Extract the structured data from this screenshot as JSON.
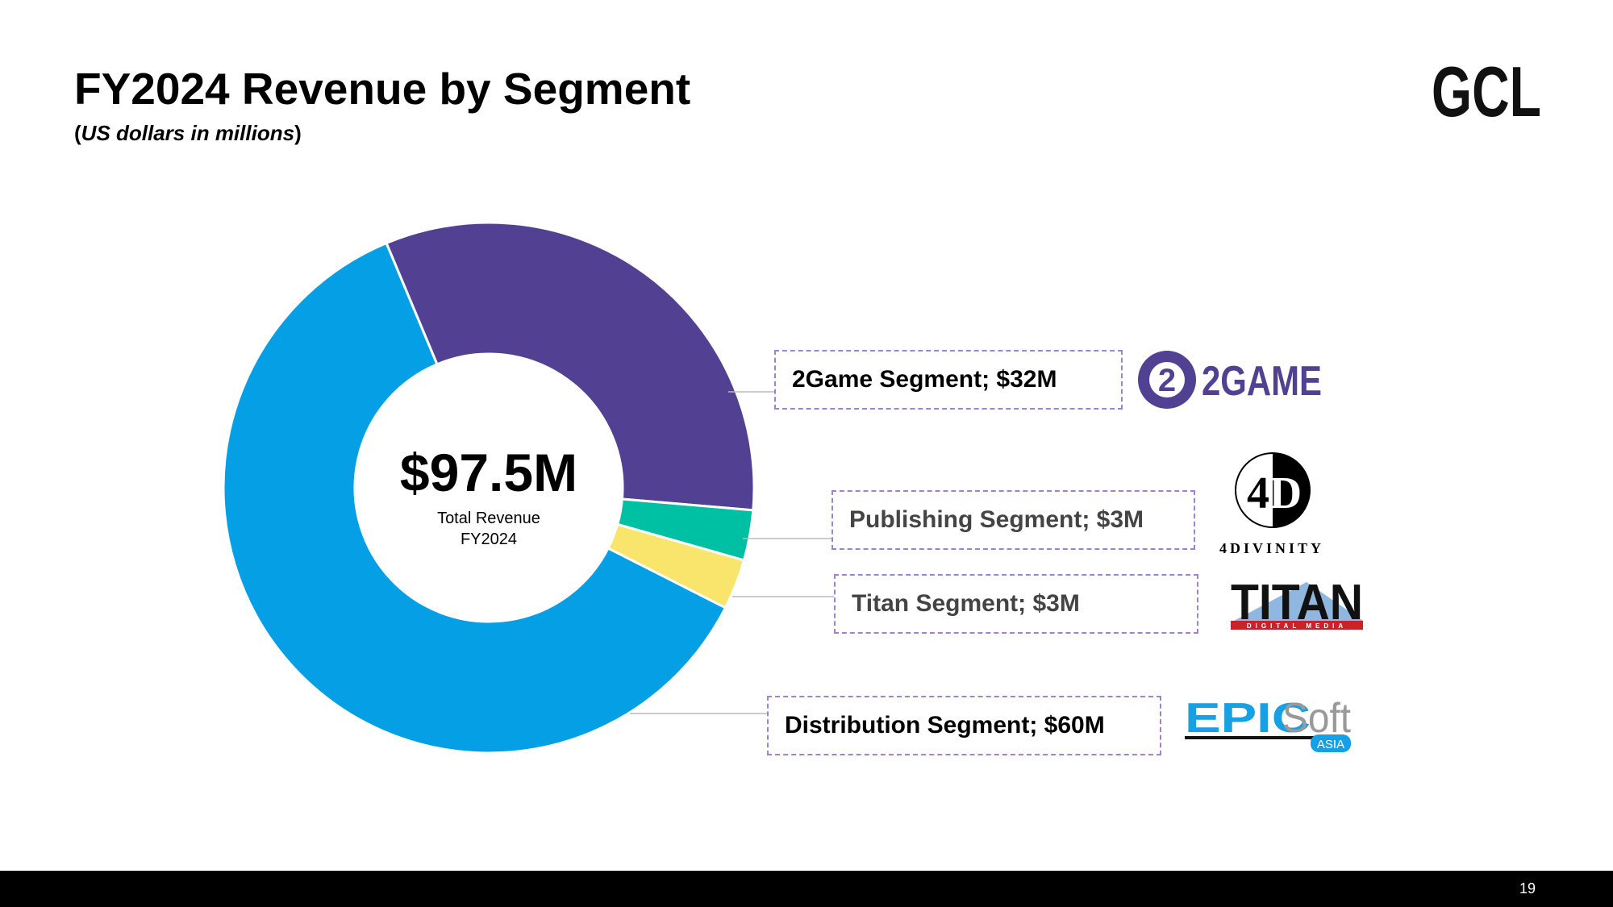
{
  "header": {
    "title": "FY2024 Revenue by Segment",
    "subtitle_open": "(",
    "subtitle_italic": "US dollars in millions",
    "subtitle_close": ")",
    "brand_logo": "GCL"
  },
  "footer": {
    "page_number": "19"
  },
  "center": {
    "total": "$97.5M",
    "line1": "Total Revenue",
    "line2": "FY2024"
  },
  "logos": {
    "twogame": "2GAME",
    "divinity": "4DIVINITY",
    "titan": "TITAN",
    "titan_sub": "DIGITAL MEDIA",
    "epic_a": "EPIC",
    "epic_b": "Soft",
    "epic_c": "ASIA"
  },
  "chart_data": {
    "type": "pie",
    "style": "donut",
    "title": "FY2024 Revenue by Segment",
    "subtitle": "(US dollars in millions)",
    "center_label": "$97.5M Total Revenue FY2024",
    "slices": [
      {
        "name": "2Game Segment",
        "value": 32,
        "label": "2Game Segment; $32M",
        "color": "#524192"
      },
      {
        "name": "Publishing Segment",
        "value": 3,
        "label": "Publishing Segment; $3M",
        "color": "#00C0A3"
      },
      {
        "name": "Titan Segment",
        "value": 3,
        "label": "Titan Segment; $3M",
        "color": "#F9E46C"
      },
      {
        "name": "Distribution Segment",
        "value": 60,
        "label": "Distribution Segment; $60M",
        "color": "#059FE5"
      }
    ]
  }
}
